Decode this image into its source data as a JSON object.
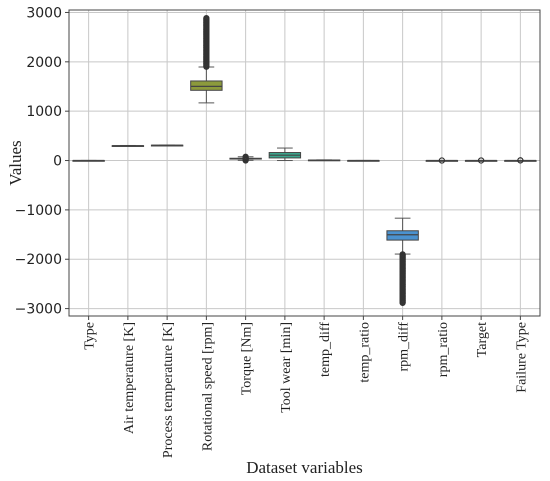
{
  "chart_data": {
    "type": "box",
    "xlabel": "Dataset variables",
    "ylabel": "Values",
    "ylim": [
      -3150,
      3050
    ],
    "yticks": [
      3000,
      2000,
      1000,
      0,
      -1000,
      -2000,
      -3000
    ],
    "ytick_labels": [
      "3000",
      "2000",
      "1000",
      "0",
      "−1000",
      "−2000",
      "−3000"
    ],
    "grid": true,
    "categories": [
      "Type",
      "Air temperature [K]",
      "Process temperature [K]",
      "Rotational speed [rpm]",
      "Torque [Nm]",
      "Tool wear [min]",
      "temp_diff",
      "temp_ratio",
      "rpm_diff",
      "rpm_ratio",
      "Target",
      "Failure Type"
    ],
    "boxes": [
      {
        "category": "Type",
        "color": "#1f77b4",
        "whisker_low": 0,
        "q1": 0,
        "median": 1,
        "q3": 1,
        "whisker_high": 2,
        "outliers_range": null
      },
      {
        "category": "Air temperature [K]",
        "color": "#ff7f0e",
        "whisker_low": 295,
        "q1": 298,
        "median": 300,
        "q3": 301,
        "whisker_high": 305,
        "outliers_range": null
      },
      {
        "category": "Process temperature [K]",
        "color": "#2ca02c",
        "whisker_low": 306,
        "q1": 309,
        "median": 310,
        "q3": 311,
        "whisker_high": 314,
        "outliers_range": null
      },
      {
        "category": "Rotational speed [rpm]",
        "color": "#8c9a3c",
        "whisker_low": 1168,
        "q1": 1423,
        "median": 1503,
        "q3": 1612,
        "whisker_high": 1895,
        "outliers_range": [
          1900,
          2886
        ]
      },
      {
        "category": "Torque [Nm]",
        "color": "#9c8a3a",
        "whisker_low": 4,
        "q1": 33,
        "median": 40,
        "q3": 46,
        "whisker_high": 76,
        "outliers_range": [
          0,
          77
        ]
      },
      {
        "category": "Tool wear [min]",
        "color": "#3aa78e",
        "whisker_low": 0,
        "q1": 53,
        "median": 108,
        "q3": 162,
        "whisker_high": 253,
        "outliers_range": null
      },
      {
        "category": "temp_diff",
        "color": "#3a9a8a",
        "whisker_low": 7,
        "q1": 9,
        "median": 10,
        "q3": 11,
        "whisker_high": 13,
        "outliers_range": null
      },
      {
        "category": "temp_ratio",
        "color": "#3a8aa8",
        "whisker_low": 1,
        "q1": 1,
        "median": 1,
        "q3": 1,
        "whisker_high": 1,
        "outliers_range": null
      },
      {
        "category": "rpm_diff",
        "color": "#4b92cf",
        "whisker_low": -1895,
        "q1": -1612,
        "median": -1503,
        "q3": -1423,
        "whisker_high": -1168,
        "outliers_range": [
          -2886,
          -1900
        ]
      },
      {
        "category": "rpm_ratio",
        "color": "#7b80c8",
        "whisker_low": 0,
        "q1": 0,
        "median": 0,
        "q3": 0,
        "whisker_high": 0,
        "outliers_range": [
          0,
          0
        ]
      },
      {
        "category": "Target",
        "color": "#b07cc6",
        "whisker_low": 0,
        "q1": 0,
        "median": 0,
        "q3": 0,
        "whisker_high": 0,
        "outliers_range": [
          1,
          1
        ]
      },
      {
        "category": "Failure Type",
        "color": "#d27ab6",
        "whisker_low": 0,
        "q1": 0,
        "median": 0,
        "q3": 0,
        "whisker_high": 0,
        "outliers_range": [
          1,
          5
        ]
      }
    ]
  }
}
